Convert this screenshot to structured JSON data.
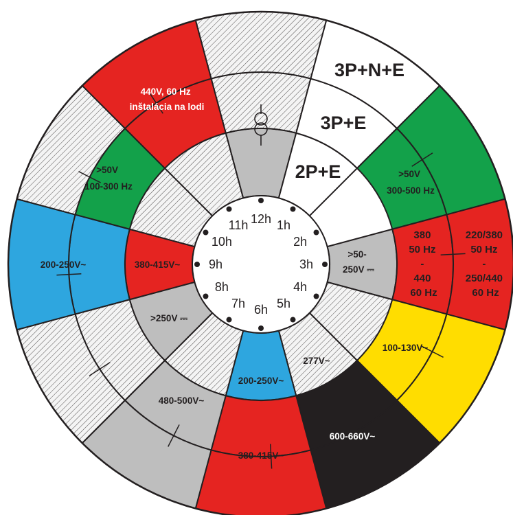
{
  "colors": {
    "red": "#e52421",
    "green": "#13a14a",
    "blue": "#2ea6df",
    "yellow": "#ffdd00",
    "black": "#231f20",
    "gray": "#bebebe",
    "white": "#ffffff",
    "hatch": "#f4f4f4"
  },
  "icon": "transformer-symbol-icon",
  "hours": [
    "12h",
    "1h",
    "2h",
    "3h",
    "4h",
    "5h",
    "6h",
    "7h",
    "8h",
    "9h",
    "10h",
    "11h"
  ],
  "segments": [
    {
      "ring": "inner",
      "from": -15,
      "to": 15,
      "color": "gray",
      "text": []
    },
    {
      "ring": "inner",
      "from": 15,
      "to": 45,
      "color": "white",
      "text": []
    },
    {
      "ring": "inner",
      "from": 75,
      "to": 105,
      "color": "gray",
      "text": []
    },
    {
      "ring": "inner",
      "from": 105,
      "to": 135,
      "color": "hatch",
      "text": []
    },
    {
      "ring": "inner",
      "from": 135,
      "to": 165,
      "color": "hatch",
      "text": []
    },
    {
      "ring": "inner",
      "from": 165,
      "to": 195,
      "color": "blue",
      "text": []
    },
    {
      "ring": "inner",
      "from": 195,
      "to": 225,
      "color": "hatch",
      "text": []
    },
    {
      "ring": "inner",
      "from": 225,
      "to": 255,
      "color": "gray",
      "text": []
    },
    {
      "ring": "inner",
      "from": 255,
      "to": 285,
      "color": "red",
      "text": []
    },
    {
      "ring": "inner",
      "from": 285,
      "to": 315,
      "color": "hatch",
      "text": []
    },
    {
      "ring": "inner",
      "from": 315,
      "to": 345,
      "color": "hatch",
      "text": []
    },
    {
      "ring": "middle",
      "from": -15,
      "to": 15,
      "color": "hatch",
      "text": []
    },
    {
      "ring": "middle",
      "from": 15,
      "to": 45,
      "color": "white",
      "text": []
    },
    {
      "ring": "middle",
      "from": 45,
      "to": 75,
      "color": "green",
      "text": []
    },
    {
      "ring": "middle",
      "from": 75,
      "to": 105,
      "color": "red",
      "text": []
    },
    {
      "ring": "middle",
      "from": 105,
      "to": 135,
      "color": "yellow",
      "text": []
    },
    {
      "ring": "middle",
      "from": 135,
      "to": 165,
      "color": "black",
      "text": []
    },
    {
      "ring": "middle",
      "from": 165,
      "to": 195,
      "color": "red",
      "text": []
    },
    {
      "ring": "middle",
      "from": 195,
      "to": 225,
      "color": "gray",
      "text": []
    },
    {
      "ring": "middle",
      "from": 225,
      "to": 255,
      "color": "hatch",
      "text": []
    },
    {
      "ring": "middle",
      "from": 255,
      "to": 285,
      "color": "blue",
      "text": []
    },
    {
      "ring": "middle",
      "from": 285,
      "to": 315,
      "color": "green",
      "text": []
    },
    {
      "ring": "middle",
      "from": 315,
      "to": 345,
      "color": "red",
      "text": []
    },
    {
      "ring": "outer",
      "from": -15,
      "to": 15,
      "color": "hatch",
      "text": []
    },
    {
      "ring": "outer",
      "from": 15,
      "to": 45,
      "color": "white",
      "text": []
    },
    {
      "ring": "outer",
      "from": 45,
      "to": 75,
      "color": "green",
      "text": []
    },
    {
      "ring": "outer",
      "from": 75,
      "to": 105,
      "color": "red",
      "text": []
    },
    {
      "ring": "outer",
      "from": 105,
      "to": 135,
      "color": "yellow",
      "text": []
    },
    {
      "ring": "outer",
      "from": 135,
      "to": 165,
      "color": "black",
      "text": []
    },
    {
      "ring": "outer",
      "from": 165,
      "to": 195,
      "color": "red",
      "text": []
    },
    {
      "ring": "outer",
      "from": 195,
      "to": 225,
      "color": "gray",
      "text": []
    },
    {
      "ring": "outer",
      "from": 225,
      "to": 255,
      "color": "hatch",
      "text": []
    },
    {
      "ring": "outer",
      "from": 255,
      "to": 285,
      "color": "blue",
      "text": []
    },
    {
      "ring": "outer",
      "from": 285,
      "to": 315,
      "color": "hatch",
      "text": []
    },
    {
      "ring": "outer",
      "from": 315,
      "to": 345,
      "color": "red",
      "text": []
    }
  ],
  "labels": [
    {
      "id": "label-2pe",
      "size": "big",
      "white": false,
      "lines": [
        "2P+E"
      ]
    },
    {
      "id": "label-3pe",
      "size": "big",
      "white": false,
      "lines": [
        "3P+E"
      ]
    },
    {
      "id": "label-3pne",
      "size": "big",
      "white": false,
      "lines": [
        "3P+N+E"
      ]
    },
    {
      "id": "label-green-right",
      "size": "mid",
      "white": false,
      "lines": [
        ">50V",
        "300-500 Hz"
      ]
    },
    {
      "id": "label-red-380",
      "size": "mid",
      "white": false,
      "lines": [
        "380",
        "50 Hz",
        "-",
        "440",
        "60 Hz"
      ]
    },
    {
      "id": "label-red-220",
      "size": "mid",
      "white": false,
      "lines": [
        "220/380",
        "50 Hz",
        "-",
        "250/440",
        "60 Hz"
      ]
    },
    {
      "id": "label-gray-3h",
      "size": "mid",
      "white": false,
      "lines": [
        ">50-",
        "250V ⎓"
      ]
    },
    {
      "id": "label-yellow",
      "size": "mid",
      "white": false,
      "lines": [
        "100-130V~"
      ]
    },
    {
      "id": "label-black",
      "size": "mid",
      "white": true,
      "lines": [
        "600-660V~"
      ]
    },
    {
      "id": "label-277",
      "size": "mid",
      "white": false,
      "lines": [
        "277V~"
      ]
    },
    {
      "id": "label-blue-6h",
      "size": "mid",
      "white": false,
      "lines": [
        "200-250V~"
      ]
    },
    {
      "id": "label-red-6h",
      "size": "mid",
      "white": false,
      "lines": [
        "380-415V~"
      ]
    },
    {
      "id": "label-480",
      "size": "mid",
      "white": false,
      "lines": [
        "480-500V~"
      ]
    },
    {
      "id": "label-gray-8h",
      "size": "mid",
      "white": false,
      "lines": [
        ">250V ⎓"
      ]
    },
    {
      "id": "label-red-9h",
      "size": "mid",
      "white": false,
      "lines": [
        "380-415V~"
      ]
    },
    {
      "id": "label-blue-9h",
      "size": "mid",
      "white": false,
      "lines": [
        "200-250V~"
      ]
    },
    {
      "id": "label-green-left",
      "size": "mid",
      "white": false,
      "lines": [
        ">50V",
        "100-300 Hz"
      ]
    },
    {
      "id": "label-ship",
      "size": "mid",
      "white": true,
      "lines": [
        "440V, 60 Hz",
        "inštalácia na lodi"
      ]
    }
  ]
}
